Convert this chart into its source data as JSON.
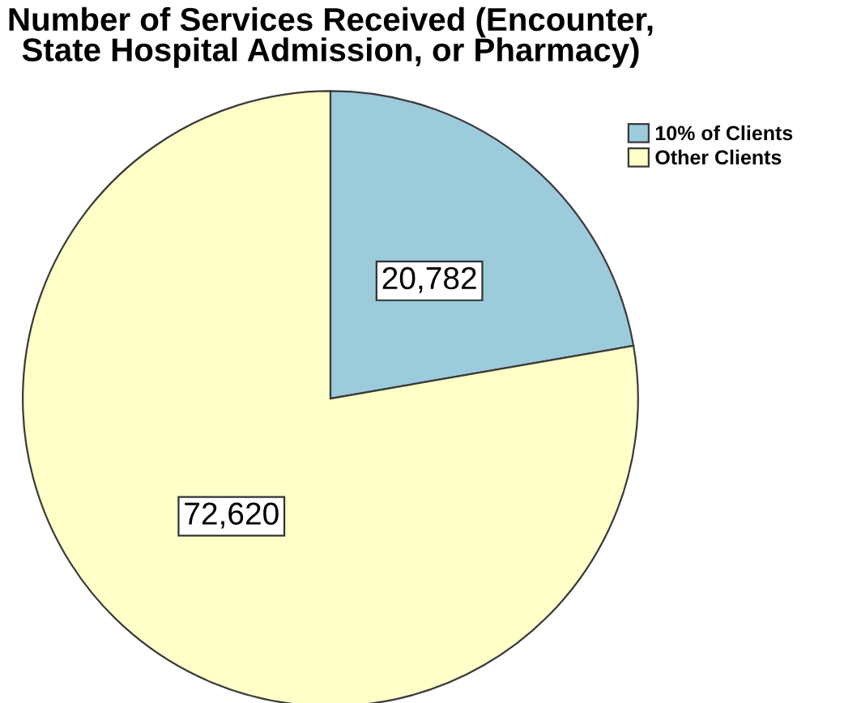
{
  "chart_data": {
    "type": "pie",
    "title": "Number of Services Received (Encounter,\nState Hospital Admission, or Pharmacy)",
    "categories": [
      "10% of Clients",
      "Other Clients"
    ],
    "values": [
      20782,
      72620
    ],
    "colors": [
      "#9ccbdc",
      "#ffffc8"
    ],
    "value_labels": [
      "20,782",
      "72,620"
    ],
    "legend": "top right"
  }
}
